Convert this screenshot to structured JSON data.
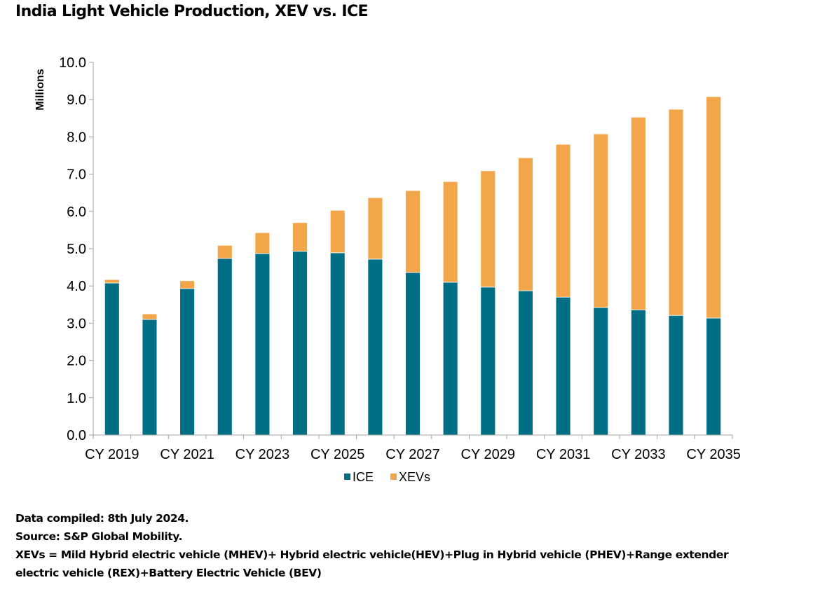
{
  "chart_data": {
    "type": "bar",
    "stacked": true,
    "title": "India Light Vehicle Production, XEV vs. ICE",
    "xlabel": "",
    "ylabel": "Millions",
    "ylim": [
      0,
      10
    ],
    "yticks": [
      "0.0",
      "1.0",
      "2.0",
      "3.0",
      "4.0",
      "5.0",
      "6.0",
      "7.0",
      "8.0",
      "9.0",
      "10.0"
    ],
    "grid": false,
    "legend_position": "bottom",
    "categories": [
      "CY 2019",
      "CY 2020",
      "CY 2021",
      "CY 2022",
      "CY 2023",
      "CY 2024",
      "CY 2025",
      "CY 2026",
      "CY 2027",
      "CY 2028",
      "CY 2029",
      "CY 2030",
      "CY 2031",
      "CY 2032",
      "CY 2033",
      "CY 2034",
      "CY 2035"
    ],
    "visible_xtick_labels": [
      "CY 2019",
      "CY 2021",
      "CY 2023",
      "CY 2025",
      "CY 2027",
      "CY 2029",
      "CY 2031",
      "CY 2033",
      "CY 2035"
    ],
    "series": [
      {
        "name": "ICE",
        "color": "#006F86",
        "values": [
          4.08,
          3.1,
          3.93,
          4.74,
          4.87,
          4.93,
          4.89,
          4.72,
          4.36,
          4.1,
          3.97,
          3.87,
          3.7,
          3.42,
          3.36,
          3.21,
          3.14
        ]
      },
      {
        "name": "XEVs",
        "color": "#F2A649",
        "values": [
          0.09,
          0.15,
          0.21,
          0.35,
          0.56,
          0.77,
          1.14,
          1.65,
          2.2,
          2.7,
          3.12,
          3.57,
          4.1,
          4.66,
          5.17,
          5.53,
          5.94
        ]
      }
    ]
  },
  "notes": {
    "compiled": "Data compiled: 8th July 2024.",
    "source": "Source: S&P Global Mobility.",
    "definition_line1": "XEVs = Mild Hybrid electric vehicle (MHEV)+ Hybrid electric vehicle(HEV)+Plug in Hybrid vehicle (PHEV)+Range extender",
    "definition_line2": "electric vehicle (REX)+Battery Electric Vehicle (BEV)"
  }
}
